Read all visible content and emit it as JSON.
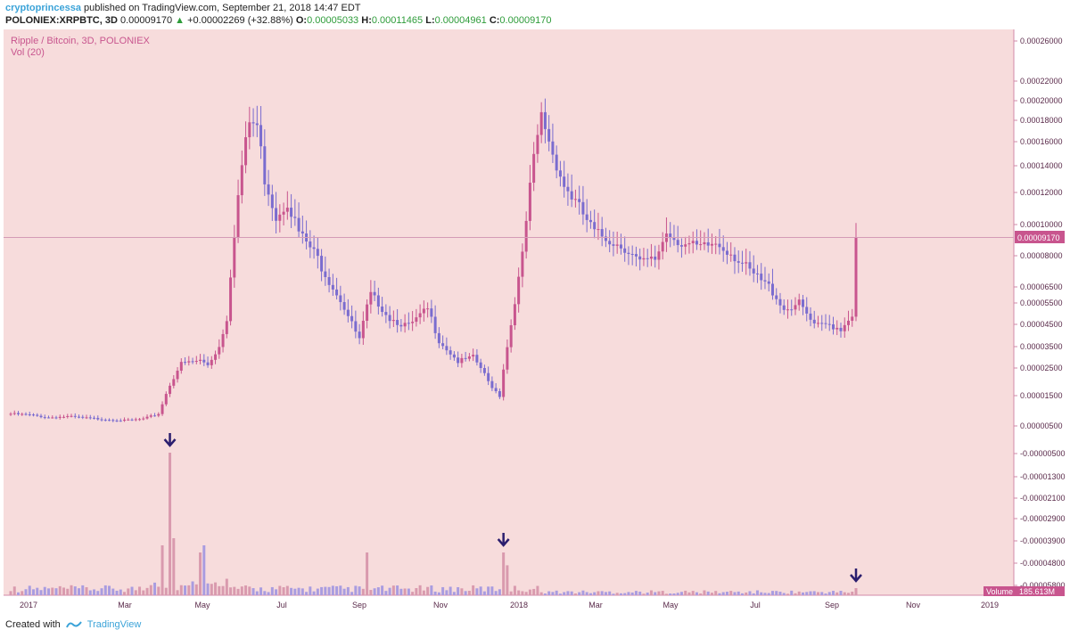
{
  "header": {
    "author": "cryptoprincessa",
    "published": "published on TradingView.com, September 21, 2018 14:47 EDT",
    "symbol": "POLONIEX:XRPBTC, 3D",
    "last": "0.00009170",
    "change": "+0.00002269 (+32.88%)",
    "o_label": "O:",
    "o_value": "0.00005033",
    "h_label": "H:",
    "h_value": "0.00011465",
    "l_label": "L:",
    "l_value": "0.00004961",
    "c_label": "C:",
    "c_value": "0.00009170"
  },
  "pane": {
    "title": "Ripple / Bitcoin, 3D, POLONIEX",
    "volume_title": "Vol (20)",
    "volume_label": "Volume",
    "volume_value": "185.613M",
    "last_price_label": "0.00009170"
  },
  "footer": {
    "created_with": "Created with",
    "brand": "TradingView"
  },
  "colors": {
    "background": "#f7dcdc",
    "up": "#c8558e",
    "down": "#7a6ccf",
    "arrow": "#2b1e6e"
  },
  "chart_data": {
    "type": "candlestick",
    "title": "Ripple / Bitcoin, 3D, POLONIEX",
    "y_ticks": [
      "0.00026000",
      "0.00022000",
      "0.00020000",
      "0.00018000",
      "0.00016000",
      "0.00014000",
      "0.00012000",
      "0.00010000",
      "0.00008000",
      "0.00006500",
      "0.00005500",
      "0.00004500",
      "0.00003500",
      "0.00002500",
      "0.00001500",
      "0.00000500",
      "-0.00000500",
      "-0.00001300",
      "-0.00002100",
      "-0.00002900",
      "-0.00003900",
      "-0.00004800",
      "-0.00005800"
    ],
    "x_ticks": [
      "2017",
      "Mar",
      "May",
      "Jul",
      "Sep",
      "Nov",
      "2018",
      "Mar",
      "May",
      "Jul",
      "Sep",
      "Nov",
      "2019"
    ],
    "price_anchors": [
      [
        0,
        9e-06
      ],
      [
        5,
        8.6e-06
      ],
      [
        10,
        7.8e-06
      ],
      [
        15,
        8.1e-06
      ],
      [
        20,
        7.6e-06
      ],
      [
        25,
        7.2e-06
      ],
      [
        30,
        6.8e-06
      ],
      [
        35,
        7.3e-06
      ],
      [
        39,
        9e-06
      ],
      [
        42,
        1.9e-05
      ],
      [
        45,
        2.7e-05
      ],
      [
        50,
        2.85e-05
      ],
      [
        52,
        2.65e-05
      ],
      [
        55,
        3.5e-05
      ],
      [
        57,
        4.8e-05
      ],
      [
        59,
        9.5e-05
      ],
      [
        61,
        0.00014
      ],
      [
        63,
        0.000178
      ],
      [
        65,
        0.000175
      ],
      [
        67,
        0.00013
      ],
      [
        70,
        0.000105
      ],
      [
        73,
        0.000115
      ],
      [
        76,
        9.5e-05
      ],
      [
        80,
        8.2e-05
      ],
      [
        85,
        6.5e-05
      ],
      [
        90,
        4.5e-05
      ],
      [
        92,
        3.8e-05
      ],
      [
        95,
        6e-05
      ],
      [
        100,
        4.8e-05
      ],
      [
        105,
        4.4e-05
      ],
      [
        110,
        5.2e-05
      ],
      [
        113,
        3.8e-05
      ],
      [
        118,
        2.8e-05
      ],
      [
        122,
        3e-05
      ],
      [
        126,
        2e-05
      ],
      [
        129,
        1.5e-05
      ],
      [
        132,
        4.5e-05
      ],
      [
        135,
        8e-05
      ],
      [
        138,
        0.000145
      ],
      [
        140,
        0.000185
      ],
      [
        143,
        0.00015
      ],
      [
        146,
        0.000125
      ],
      [
        150,
        0.00011
      ],
      [
        154,
        9.5e-05
      ],
      [
        158,
        9e-05
      ],
      [
        162,
        8.5e-05
      ],
      [
        166,
        7.6e-05
      ],
      [
        170,
        7.8e-05
      ],
      [
        173,
        9.5e-05
      ],
      [
        177,
        8.8e-05
      ],
      [
        182,
        8.5e-05
      ],
      [
        186,
        8.8e-05
      ],
      [
        190,
        8.2e-05
      ],
      [
        195,
        7.2e-05
      ],
      [
        200,
        6.5e-05
      ],
      [
        204,
        5.2e-05
      ],
      [
        208,
        5.5e-05
      ],
      [
        212,
        4.4e-05
      ],
      [
        216,
        4.5e-05
      ],
      [
        219,
        4.3e-05
      ],
      [
        222,
        5e-05
      ],
      [
        223,
        9.17e-05
      ]
    ],
    "volume_spikes": [
      [
        40,
        0.35
      ],
      [
        42,
        1.0
      ],
      [
        43,
        0.4
      ],
      [
        50,
        0.3
      ],
      [
        51,
        0.35
      ],
      [
        94,
        0.3
      ],
      [
        130,
        0.3
      ],
      [
        131,
        0.21
      ],
      [
        223,
        0.05
      ]
    ],
    "markers": [
      42,
      130,
      223
    ],
    "last_price": "0.00009170",
    "volume": "185.613M"
  }
}
